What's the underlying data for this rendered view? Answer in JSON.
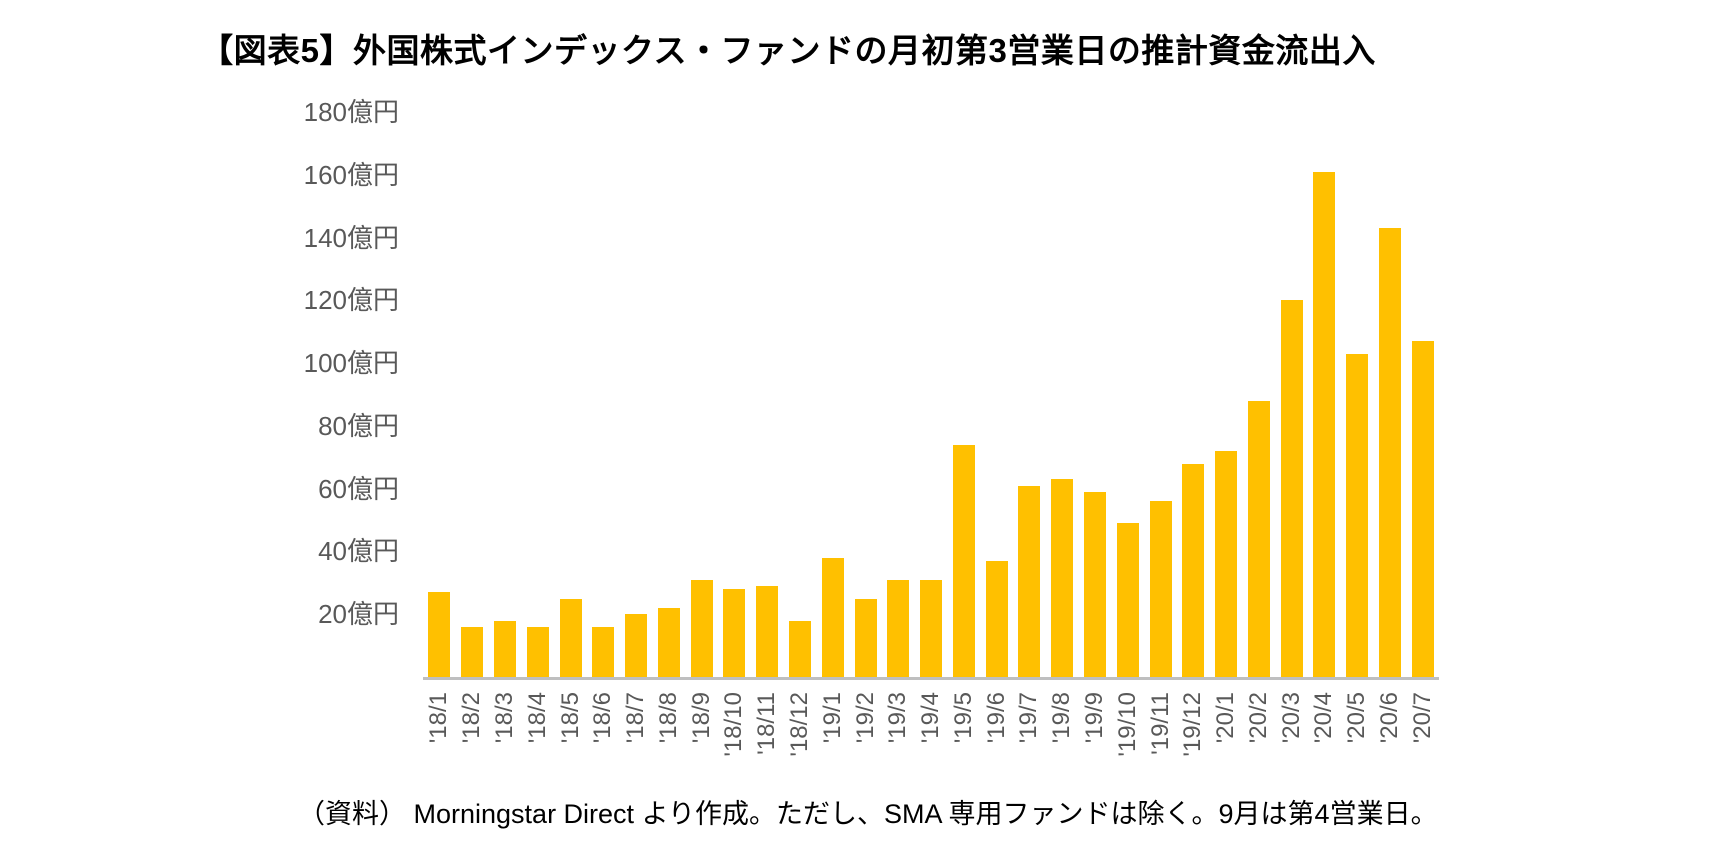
{
  "chart_data": {
    "type": "bar",
    "title": "【図表5】外国株式インデックス・ファンドの月初第3営業日の推計資金流出入",
    "categories": [
      "'18/1",
      "'18/2",
      "'18/3",
      "'18/4",
      "'18/5",
      "'18/6",
      "'18/7",
      "'18/8",
      "'18/9",
      "'18/10",
      "'18/11",
      "'18/12",
      "'19/1",
      "'19/2",
      "'19/3",
      "'19/4",
      "'19/5",
      "'19/6",
      "'19/7",
      "'19/8",
      "'19/9",
      "'19/10",
      "'19/11",
      "'19/12",
      "'20/1",
      "'20/2",
      "'20/3",
      "'20/4",
      "'20/5",
      "'20/6",
      "'20/7"
    ],
    "values": [
      27,
      16,
      18,
      16,
      25,
      16,
      20,
      22,
      31,
      28,
      29,
      18,
      38,
      25,
      31,
      31,
      74,
      37,
      61,
      63,
      59,
      49,
      56,
      68,
      72,
      88,
      120,
      161,
      103,
      143,
      107
    ],
    "unit": "億円",
    "y_ticks": [
      20,
      40,
      60,
      80,
      100,
      120,
      140,
      160,
      180
    ],
    "y_tick_suffix": "億円",
    "ylim": [
      0,
      180
    ],
    "bar_color": "#FFC000",
    "axis_label_color": "#595959",
    "baseline_color": "#bfbfbf",
    "grid": "off",
    "legend": "none",
    "source_note": "（資料） Morningstar Direct より作成。ただし、SMA 専用ファンドは除く。9月は第4営業日。"
  }
}
